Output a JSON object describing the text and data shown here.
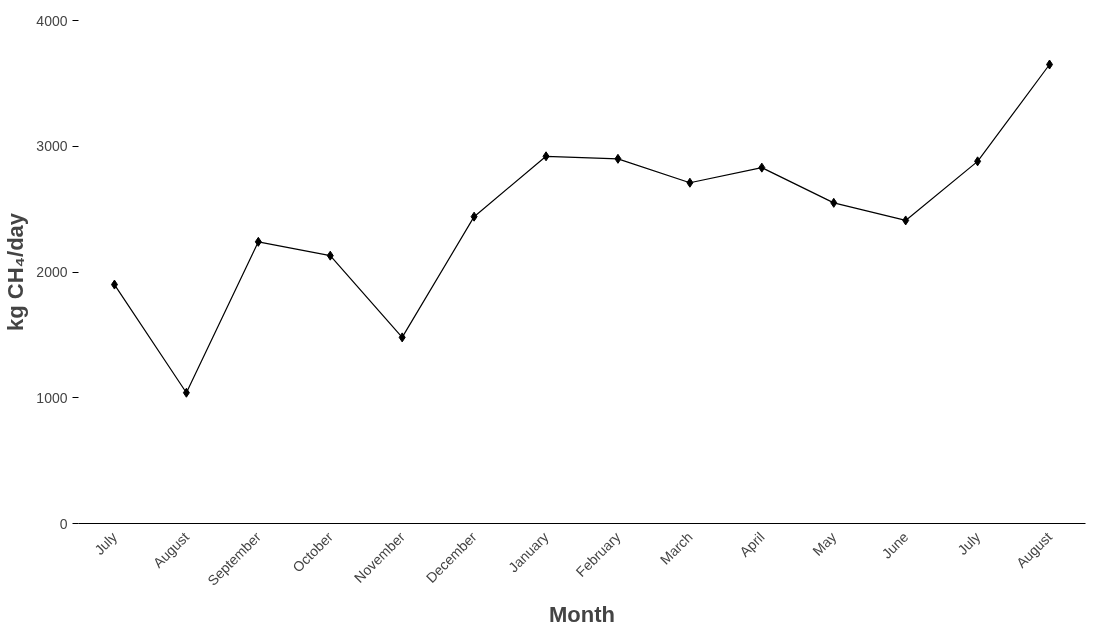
{
  "chart_data": {
    "type": "line",
    "xlabel": "Month",
    "ylabel": "kg CH₄/day",
    "categories": [
      "July",
      "August",
      "September",
      "October",
      "November",
      "December",
      "January",
      "February",
      "March",
      "April",
      "May",
      "June",
      "July",
      "August"
    ],
    "series": [
      {
        "color": "#000000",
        "values": [
          1900,
          1040,
          2240,
          2130,
          1480,
          2440,
          2920,
          2900,
          2710,
          2830,
          2550,
          2410,
          2880,
          3650
        ]
      }
    ],
    "ylim": [
      0,
      4000
    ],
    "yticks": [
      0,
      1000,
      2000,
      3000,
      4000
    ],
    "grid": false,
    "marker": "diamond",
    "line_style": "solid"
  }
}
